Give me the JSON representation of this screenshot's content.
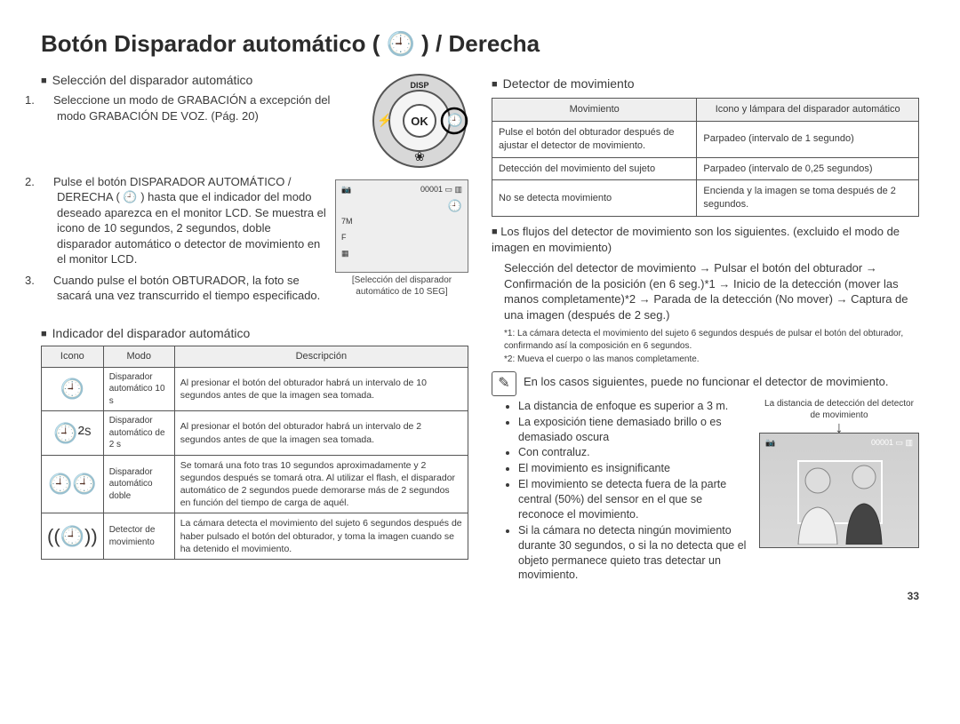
{
  "page_number": "33",
  "title": "Botón Disparador automático ( 🕘 ) / Derecha",
  "left": {
    "section1_heading": "Selección del disparador automático",
    "steps": [
      "Seleccione un modo de GRABACIÓN a excepción del modo GRABACIÓN DE VOZ. (Pág. 20)",
      "Pulse el botón DISPARADOR AUTOMÁTICO / DERECHA ( 🕘 ) hasta que el indicador del modo deseado aparezca en el monitor LCD. Se muestra el icono de 10 segundos, 2 segundos, doble disparador automático o detector de movimiento en el monitor LCD.",
      "Cuando pulse el botón OBTURADOR, la foto se sacará una vez transcurrido el tiempo especificado."
    ],
    "dial": {
      "top": "DISP",
      "left": "⚡",
      "right": "🕘",
      "bottom": "❀",
      "center": "OK"
    },
    "lcd_caption": "[Selección del disparador automático de 10 SEG]",
    "section2_heading": "Indicador del disparador automático",
    "table_headers": [
      "Icono",
      "Modo",
      "Descripción"
    ],
    "table_rows": [
      {
        "icon": "🕘",
        "mode": "Disparador automático 10 s",
        "desc": "Al presionar el botón del obturador habrá un intervalo de 10 segundos antes de que la imagen sea tomada."
      },
      {
        "icon": "🕘²ˢ",
        "mode": "Disparador automático de 2 s",
        "desc": "Al presionar el botón del obturador habrá un intervalo de 2 segundos antes de que la imagen sea tomada."
      },
      {
        "icon": "🕘🕘",
        "mode": "Disparador automático doble",
        "desc": "Se tomará una foto tras 10 segundos aproximadamente y 2 segundos después se tomará otra. Al utilizar el flash, el disparador automático de 2 segundos puede demorarse más de 2 segundos en función del tiempo de carga de aquél."
      },
      {
        "icon": "((🕘))",
        "mode": "Detector de movimiento",
        "desc": "La cámara detecta el movimiento del sujeto 6 segundos después de haber pulsado el botón del obturador, y toma la imagen cuando se ha detenido el movimiento."
      }
    ]
  },
  "right": {
    "section_heading": "Detector de movimiento",
    "mov_headers": [
      "Movimiento",
      "Icono y lámpara del disparador automático"
    ],
    "mov_rows": [
      [
        "Pulse el botón del obturador después de ajustar el detector de movimiento.",
        "Parpadeo (intervalo de 1 segundo)"
      ],
      [
        "Detección del movimiento del sujeto",
        "Parpadeo (intervalo de 0,25 segundos)"
      ],
      [
        "No se detecta movimiento",
        "Encienda y la imagen se toma después de 2 segundos."
      ]
    ],
    "flow_intro": "Los flujos del detector de movimiento son los siguientes. (excluido el modo de imagen en movimiento)",
    "flow": "Selección del detector de movimiento → Pulsar el botón del obturador → Confirmación de la posición (en 6 seg.)*1 → Inicio de la detección (mover las manos completamente)*2 → Parada de la detección (No mover) → Captura de una imagen (después de 2 seg.)",
    "footnotes": [
      "*1: La cámara detecta el movimiento del sujeto 6 segundos después de pulsar el botón del obturador, confirmando así la composición en 6 segundos.",
      "*2: Mueva el cuerpo o las manos completamente."
    ],
    "note_lead": "En los casos siguientes, puede no funcionar el detector de movimiento.",
    "bullets": [
      "La distancia de enfoque es superior a 3 m.",
      "La exposición tiene demasiado brillo o es demasiado oscura",
      "Con contraluz.",
      "El movimiento es insignificante",
      "El movimiento se detecta fuera de la parte central (50%) del sensor en el que se reconoce el movimiento.",
      "Si la cámara no detecta ningún movimiento durante 30 segundos, o si la no detecta que el objeto permanece quieto tras detectar un movimiento."
    ],
    "distance_callout": "La distancia de detección del detector de movimiento"
  },
  "colors": {
    "text": "#3a3a3a",
    "border": "#555555",
    "header_bg": "#efefef",
    "background": "#ffffff"
  }
}
